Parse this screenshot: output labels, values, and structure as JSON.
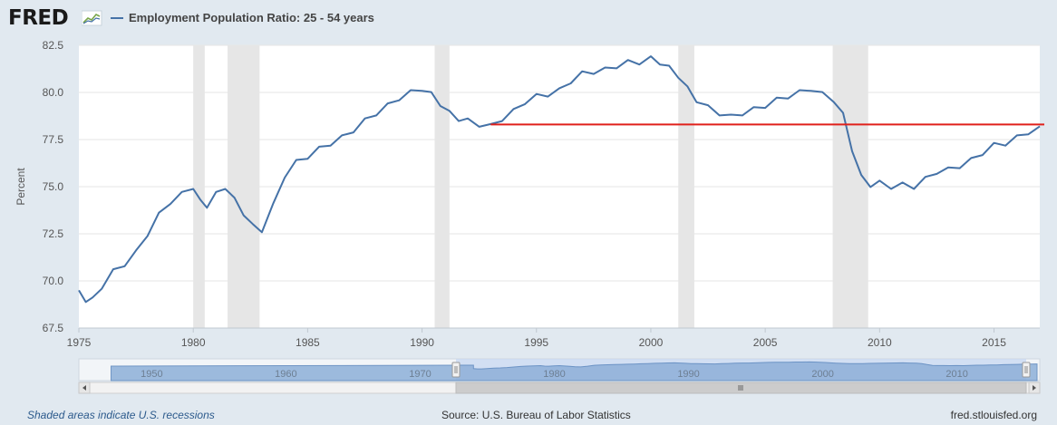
{
  "header": {
    "logo_text": "FRED",
    "series_title": "Employment Population Ratio: 25 - 54 years"
  },
  "footer": {
    "recession_note": "Shaded areas indicate U.S. recessions",
    "source": "Source: U.S. Bureau of Labor Statistics",
    "site": "fred.stlouisfed.org"
  },
  "colors": {
    "series": "#4572a7",
    "reference_line": "#e0201b",
    "recession": "#e6e6e6",
    "background": "#e1e9f0"
  },
  "chart_data": {
    "type": "line",
    "title": "Employment Population Ratio: 25 - 54 years",
    "ylabel": "Percent",
    "xlabel": "",
    "xlim": [
      1975,
      2017
    ],
    "ylim": [
      67.5,
      82.5
    ],
    "x_ticks": [
      "1975",
      "1980",
      "1985",
      "1990",
      "1995",
      "2000",
      "2005",
      "2010",
      "2015"
    ],
    "y_ticks": [
      "67.5",
      "70.0",
      "72.5",
      "75.0",
      "77.5",
      "80.0",
      "82.5"
    ],
    "recessions": [
      [
        1980.0,
        1980.5
      ],
      [
        1981.5,
        1982.9
      ],
      [
        1990.55,
        1991.2
      ],
      [
        2001.2,
        2001.9
      ],
      [
        2007.95,
        2009.5
      ]
    ],
    "reference_line": {
      "from": 1993.0,
      "to": 2017.2,
      "value": 78.3
    },
    "series": [
      {
        "name": "Employment Population Ratio: 25 - 54 years",
        "x": [
          1975.0,
          1975.3,
          1975.6,
          1976.0,
          1976.5,
          1977.0,
          1977.5,
          1978.0,
          1978.5,
          1979.0,
          1979.5,
          1980.0,
          1980.3,
          1980.6,
          1981.0,
          1981.4,
          1981.8,
          1982.2,
          1982.6,
          1983.0,
          1983.5,
          1984.0,
          1984.5,
          1985.0,
          1985.5,
          1986.0,
          1986.5,
          1987.0,
          1987.5,
          1988.0,
          1988.5,
          1989.0,
          1989.5,
          1990.0,
          1990.4,
          1990.8,
          1991.2,
          1991.6,
          1992.0,
          1992.5,
          1993.0,
          1993.5,
          1994.0,
          1994.5,
          1995.0,
          1995.5,
          1996.0,
          1996.5,
          1997.0,
          1997.5,
          1998.0,
          1998.5,
          1999.0,
          1999.5,
          2000.0,
          2000.4,
          2000.8,
          2001.2,
          2001.6,
          2002.0,
          2002.5,
          2003.0,
          2003.5,
          2004.0,
          2004.5,
          2005.0,
          2005.5,
          2006.0,
          2006.5,
          2007.0,
          2007.5,
          2008.0,
          2008.4,
          2008.8,
          2009.2,
          2009.6,
          2010.0,
          2010.5,
          2011.0,
          2011.5,
          2012.0,
          2012.5,
          2013.0,
          2013.5,
          2014.0,
          2014.5,
          2015.0,
          2015.5,
          2016.0,
          2016.5,
          2017.0
        ],
        "values": [
          69.5,
          69.0,
          69.0,
          69.7,
          70.5,
          70.9,
          71.5,
          72.5,
          73.5,
          74.2,
          74.6,
          75.0,
          74.2,
          74.0,
          74.6,
          75.0,
          74.3,
          73.6,
          72.9,
          72.7,
          74.0,
          75.6,
          76.3,
          76.6,
          77.0,
          77.3,
          77.6,
          78.0,
          78.5,
          78.9,
          79.3,
          79.7,
          80.0,
          80.2,
          79.9,
          79.4,
          78.9,
          78.6,
          78.5,
          78.3,
          78.2,
          78.6,
          79.0,
          79.5,
          79.8,
          79.9,
          80.1,
          80.6,
          81.0,
          81.1,
          81.2,
          81.4,
          81.6,
          81.6,
          81.8,
          81.6,
          81.3,
          80.9,
          80.2,
          79.6,
          79.2,
          78.9,
          78.7,
          78.9,
          79.1,
          79.3,
          79.6,
          79.8,
          80.0,
          80.2,
          79.9,
          79.6,
          78.8,
          77.0,
          75.5,
          75.1,
          75.2,
          75.0,
          75.1,
          75.0,
          75.4,
          75.8,
          75.9,
          76.1,
          76.4,
          76.8,
          77.2,
          77.3,
          77.6,
          77.9,
          78.2
        ]
      }
    ],
    "navigator_labels": [
      "1950",
      "1960",
      "1970",
      "1980",
      "1990",
      "2000",
      "2010"
    ]
  }
}
